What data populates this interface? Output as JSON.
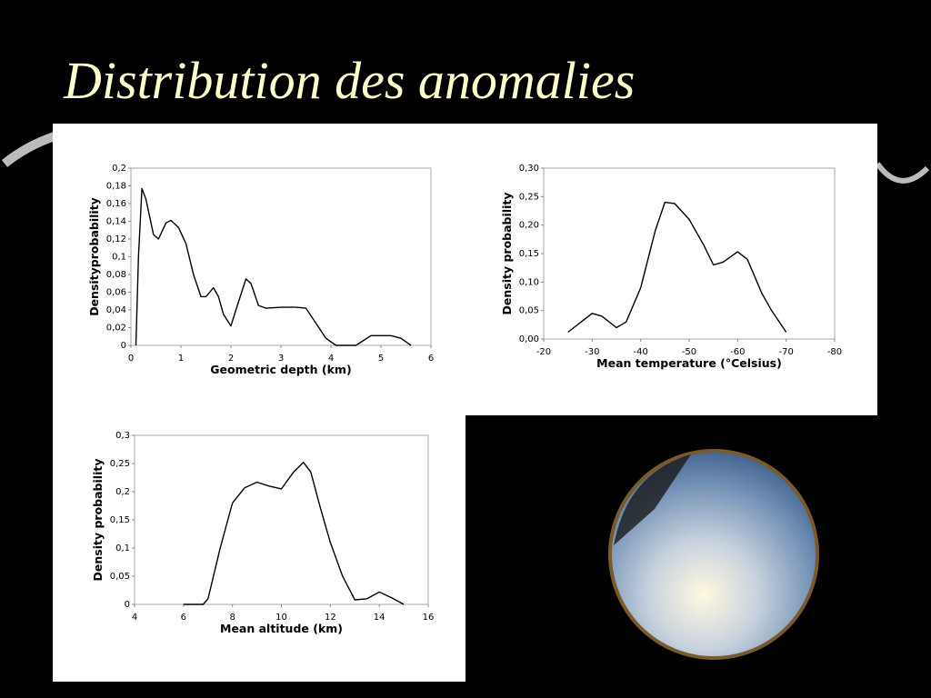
{
  "slide_title": "Distribution des anomalies",
  "chart_data": [
    {
      "type": "line",
      "x_label": "Geometric depth (km)",
      "y_label": "Densityprobability",
      "color": "#000000",
      "grid": false,
      "xlim": [
        0,
        6
      ],
      "xticks": [
        0,
        1,
        2,
        3,
        4,
        5,
        6
      ],
      "ylim": [
        0,
        0.2
      ],
      "yticks": [
        0,
        {
          "value": 0.02,
          "label": "0,02"
        },
        {
          "value": 0.04,
          "label": "0,04"
        },
        {
          "value": 0.06,
          "label": "0,06"
        },
        {
          "value": 0.08,
          "label": "0,08"
        },
        {
          "value": 0.1,
          "label": "0,1"
        },
        {
          "value": 0.12,
          "label": "0,12"
        },
        {
          "value": 0.14,
          "label": "0,14"
        },
        {
          "value": 0.16,
          "label": "0,16"
        },
        {
          "value": 0.18,
          "label": "0,18"
        },
        {
          "value": 0.2,
          "label": "0,2"
        }
      ],
      "x": [
        0.1,
        0.15,
        0.22,
        0.3,
        0.45,
        0.55,
        0.7,
        0.8,
        0.95,
        1.1,
        1.25,
        1.4,
        1.5,
        1.65,
        1.75,
        1.85,
        2.0,
        2.1,
        2.3,
        2.4,
        2.55,
        2.7,
        3.0,
        3.3,
        3.5,
        3.7,
        3.9,
        4.1,
        4.5,
        4.8,
        5.2,
        5.4,
        5.6
      ],
      "values": [
        0,
        0.1,
        0.177,
        0.165,
        0.125,
        0.12,
        0.138,
        0.141,
        0.133,
        0.115,
        0.08,
        0.055,
        0.055,
        0.065,
        0.055,
        0.035,
        0.022,
        0.04,
        0.075,
        0.07,
        0.045,
        0.042,
        0.043,
        0.043,
        0.042,
        0.025,
        0.008,
        0,
        0,
        0.011,
        0.011,
        0.008,
        0
      ]
    },
    {
      "type": "line",
      "x_label": "Mean temperature (°Celsius)",
      "y_label": "Density probability",
      "color": "#000000",
      "grid": false,
      "xlim": [
        -20,
        -80
      ],
      "xticks": [
        -20,
        -30,
        -40,
        -50,
        -60,
        -70,
        -80
      ],
      "ylim": [
        0,
        0.3
      ],
      "yticks": [
        {
          "value": 0,
          "label": "0,00"
        },
        {
          "value": 0.05,
          "label": "0,05"
        },
        {
          "value": 0.1,
          "label": "0,10"
        },
        {
          "value": 0.15,
          "label": "0,15"
        },
        {
          "value": 0.2,
          "label": "0,20"
        },
        {
          "value": 0.25,
          "label": "0,25"
        },
        {
          "value": 0.3,
          "label": "0,30"
        }
      ],
      "x": [
        -25,
        -30,
        -32,
        -35,
        -37,
        -40,
        -43,
        -45,
        -47,
        -50,
        -53,
        -55,
        -57,
        -60,
        -62,
        -65,
        -67,
        -70
      ],
      "values": [
        0.012,
        0.045,
        0.04,
        0.02,
        0.03,
        0.09,
        0.19,
        0.24,
        0.238,
        0.21,
        0.165,
        0.13,
        0.135,
        0.153,
        0.14,
        0.08,
        0.05,
        0.012
      ]
    },
    {
      "type": "line",
      "x_label": "Mean altitude (km)",
      "y_label": "Density probability",
      "color": "#000000",
      "grid": false,
      "xlim": [
        4,
        16
      ],
      "xticks": [
        4,
        6,
        8,
        10,
        12,
        14,
        16
      ],
      "ylim": [
        0,
        0.3
      ],
      "yticks": [
        0,
        {
          "value": 0.05,
          "label": "0,05"
        },
        {
          "value": 0.1,
          "label": "0,1"
        },
        {
          "value": 0.15,
          "label": "0,15"
        },
        {
          "value": 0.2,
          "label": "0,2"
        },
        {
          "value": 0.25,
          "label": "0,25"
        },
        {
          "value": 0.3,
          "label": "0,3"
        }
      ],
      "x": [
        6,
        6.3,
        6.8,
        7,
        7.5,
        8,
        8.5,
        9,
        9.5,
        10,
        10.5,
        10.9,
        11.2,
        11.6,
        12,
        12.5,
        13,
        13.5,
        14,
        14.5,
        15
      ],
      "values": [
        0,
        0,
        0,
        0.01,
        0.1,
        0.18,
        0.207,
        0.217,
        0.21,
        0.205,
        0.235,
        0.252,
        0.235,
        0.17,
        0.11,
        0.05,
        0.008,
        0.01,
        0.022,
        0.012,
        0
      ]
    }
  ]
}
